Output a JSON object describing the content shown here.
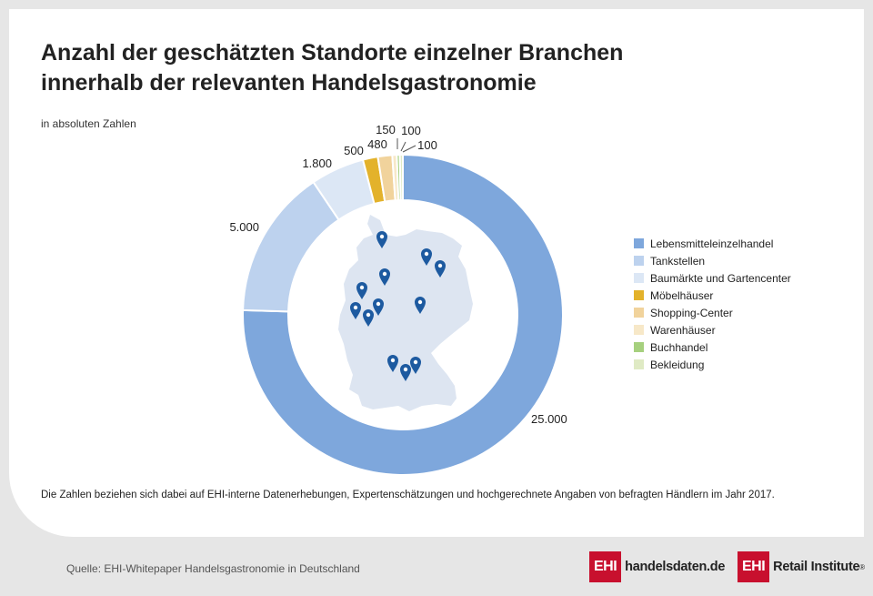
{
  "header": {
    "title_line1": "Anzahl der geschätzten Standorte einzelner Branchen",
    "title_line2": "innerhalb der relevanten Handelsgastronomie",
    "subtitle": "in absoluten Zahlen"
  },
  "chart_data": {
    "type": "pie",
    "donut": true,
    "title": "Anzahl der geschätzten Standorte einzelner Branchen innerhalb der relevanten Handelsgastronomie",
    "subtitle": "in absoluten Zahlen",
    "legend_position": "right",
    "categories": [
      "Lebensmitteleinzelhandel",
      "Tankstellen",
      "Baumärkte und Gartencenter",
      "Möbelhäuser",
      "Shopping-Center",
      "Warenhäuser",
      "Buchhandel",
      "Bekleidung"
    ],
    "values": [
      25000,
      5000,
      1800,
      500,
      480,
      150,
      100,
      100
    ],
    "data_labels": [
      "25.000",
      "5.000",
      "1.800",
      "500",
      "480",
      "150",
      "100",
      "100"
    ],
    "colors": [
      "#7ea7dc",
      "#bdd2ee",
      "#dce7f5",
      "#e3b22b",
      "#f1d39c",
      "#f7e8c8",
      "#a6d07e",
      "#dfeac4"
    ]
  },
  "map": {
    "fill": "#dde5f1",
    "pin_color": "#1d5aa0",
    "pin_count": 12
  },
  "footnote": "Die Zahlen beziehen sich dabei auf EHI-interne Datenerhebungen, Expertenschätzungen und hochgerechnete Angaben von befragten Händlern im Jahr 2017.",
  "footer": {
    "source": "Quelle: EHI-Whitepaper Handelsgastronomie in Deutschland",
    "logo1_box": "EHI",
    "logo1_text": "handelsdaten.de",
    "logo2_box": "EHI",
    "logo2_text": "Retail Institute",
    "logo2_reg": "®"
  }
}
